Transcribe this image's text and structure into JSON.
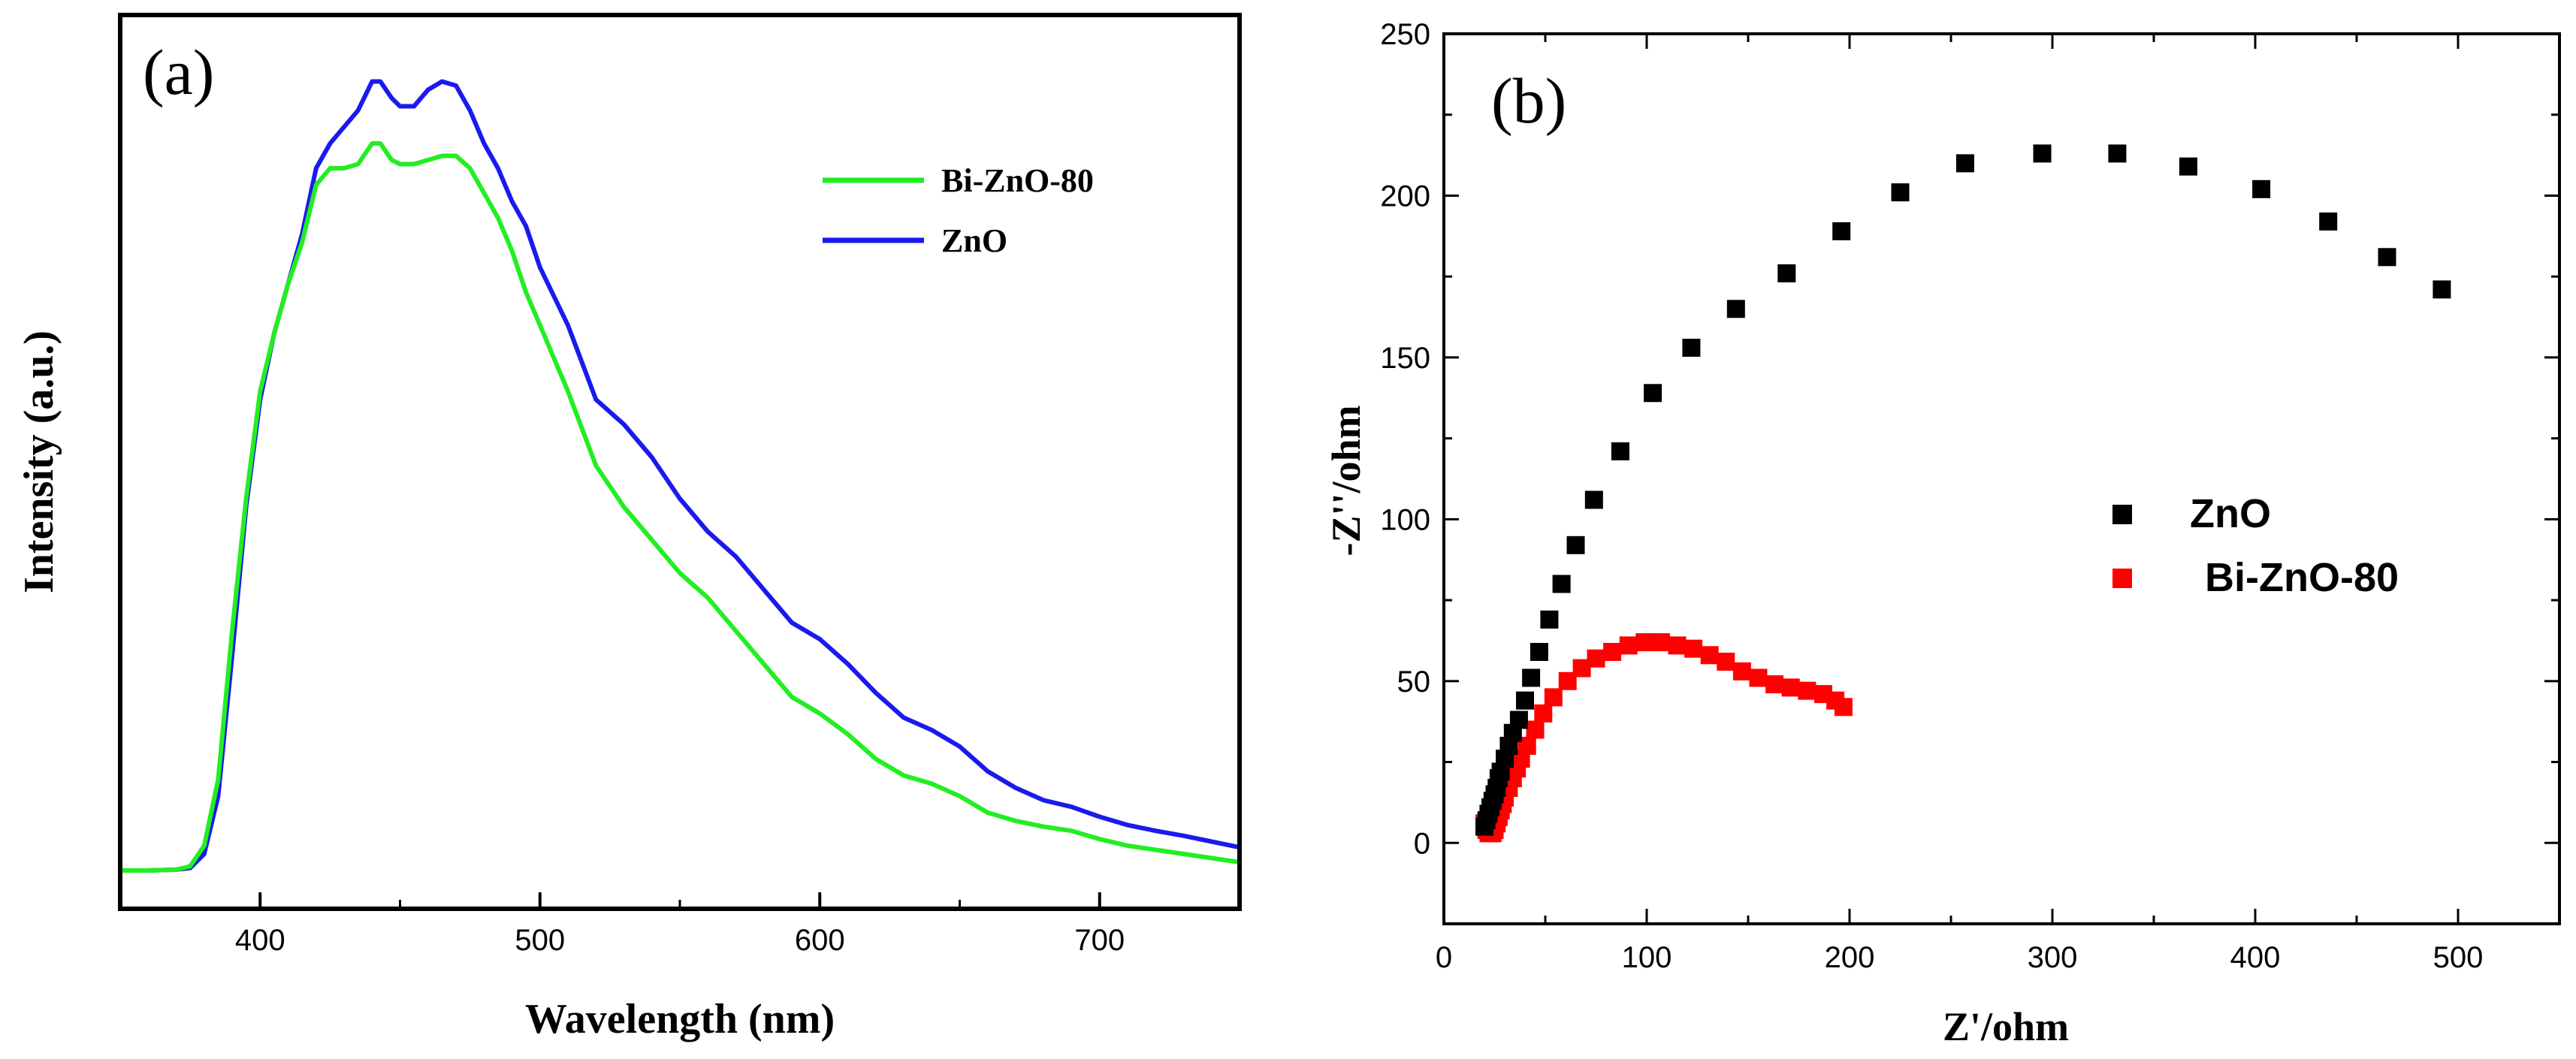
{
  "chart_data": [
    {
      "type": "line",
      "panel_label": "(a)",
      "title": "",
      "xlabel": "Wavelength (nm)",
      "ylabel": "Intensity (a.u.)",
      "xlim": [
        350,
        750
      ],
      "ylim": [
        0,
        1.0
      ],
      "x_ticks": [
        400,
        500,
        600,
        700
      ],
      "y_ticks_shown": false,
      "legend_position": "top-right",
      "series": [
        {
          "name": "Bi-ZnO-80",
          "color": "#22ee22",
          "x": [
            350,
            360,
            370,
            375,
            380,
            385,
            390,
            395,
            400,
            405,
            410,
            415,
            420,
            425,
            430,
            435,
            440,
            443,
            447,
            450,
            455,
            460,
            465,
            470,
            475,
            480,
            485,
            490,
            495,
            500,
            510,
            520,
            530,
            540,
            550,
            560,
            570,
            580,
            590,
            600,
            610,
            620,
            630,
            640,
            650,
            660,
            670,
            680,
            690,
            700,
            710,
            720,
            730,
            740,
            750
          ],
          "values": [
            0.01,
            0.01,
            0.011,
            0.015,
            0.04,
            0.12,
            0.3,
            0.46,
            0.59,
            0.66,
            0.72,
            0.77,
            0.84,
            0.86,
            0.86,
            0.865,
            0.89,
            0.89,
            0.87,
            0.865,
            0.865,
            0.87,
            0.875,
            0.875,
            0.86,
            0.83,
            0.8,
            0.76,
            0.71,
            0.67,
            0.59,
            0.5,
            0.45,
            0.41,
            0.37,
            0.34,
            0.3,
            0.26,
            0.22,
            0.2,
            0.175,
            0.145,
            0.125,
            0.115,
            0.1,
            0.08,
            0.07,
            0.063,
            0.058,
            0.048,
            0.04,
            0.035,
            0.03,
            0.025,
            0.02
          ]
        },
        {
          "name": "ZnO",
          "color": "#1a1aee",
          "x": [
            350,
            360,
            370,
            375,
            380,
            385,
            390,
            395,
            400,
            405,
            410,
            415,
            420,
            425,
            430,
            435,
            440,
            443,
            447,
            450,
            455,
            460,
            465,
            470,
            475,
            480,
            485,
            490,
            495,
            500,
            510,
            520,
            530,
            540,
            550,
            560,
            570,
            580,
            590,
            600,
            610,
            620,
            630,
            640,
            650,
            660,
            670,
            680,
            690,
            700,
            710,
            720,
            730,
            740,
            750
          ],
          "values": [
            0.01,
            0.01,
            0.011,
            0.013,
            0.03,
            0.1,
            0.27,
            0.45,
            0.58,
            0.66,
            0.72,
            0.78,
            0.86,
            0.89,
            0.91,
            0.93,
            0.965,
            0.965,
            0.945,
            0.935,
            0.935,
            0.955,
            0.965,
            0.96,
            0.93,
            0.89,
            0.86,
            0.82,
            0.79,
            0.74,
            0.67,
            0.58,
            0.55,
            0.51,
            0.46,
            0.42,
            0.39,
            0.35,
            0.31,
            0.29,
            0.26,
            0.225,
            0.195,
            0.18,
            0.16,
            0.13,
            0.11,
            0.095,
            0.087,
            0.075,
            0.065,
            0.058,
            0.052,
            0.045,
            0.038
          ]
        }
      ]
    },
    {
      "type": "scatter",
      "panel_label": "(b)",
      "title": "",
      "xlabel": "Z'/ohm",
      "ylabel": "-Z''/ohm",
      "xlim": [
        0,
        550
      ],
      "ylim": [
        -25,
        250
      ],
      "x_ticks": [
        0,
        100,
        200,
        300,
        400,
        500
      ],
      "y_ticks": [
        0,
        50,
        100,
        150,
        200,
        250
      ],
      "legend_position": "center-right",
      "series": [
        {
          "name": "ZnO",
          "color": "#000000",
          "x": [
            20,
            21,
            22,
            23,
            24,
            25,
            26,
            27,
            28,
            30,
            32,
            34,
            37,
            40,
            43,
            47,
            52,
            58,
            65,
            74,
            87,
            103,
            122,
            144,
            169,
            196,
            225,
            257,
            295,
            332,
            367,
            403,
            436,
            465,
            492
          ],
          "y": [
            5,
            7,
            9,
            11,
            13,
            15,
            17,
            20,
            22,
            26,
            30,
            34,
            38,
            44,
            51,
            59,
            69,
            80,
            92,
            106,
            121,
            139,
            153,
            165,
            176,
            189,
            201,
            210,
            213,
            213,
            209,
            202,
            192,
            181,
            171
          ],
          "marker": "square"
        },
        {
          "name": "Bi-ZnO-80",
          "color": "#ff0000",
          "x": [
            20,
            21,
            22,
            23,
            24,
            25,
            26,
            27,
            28,
            29,
            30,
            32,
            34,
            36,
            38,
            41,
            45,
            49,
            54,
            61,
            68,
            75,
            83,
            91,
            99,
            107,
            115,
            123,
            131,
            139,
            147,
            155,
            163,
            171,
            179,
            187,
            193,
            197
          ],
          "y": [
            6,
            4,
            3,
            3,
            3,
            4,
            6,
            8,
            10,
            12,
            14,
            17,
            20,
            23,
            26,
            30,
            35,
            40,
            45,
            50,
            54,
            57,
            59,
            61,
            62,
            62,
            61,
            60,
            58,
            56,
            53,
            51,
            49,
            48,
            47,
            46,
            44,
            42
          ],
          "marker": "square"
        }
      ]
    }
  ]
}
